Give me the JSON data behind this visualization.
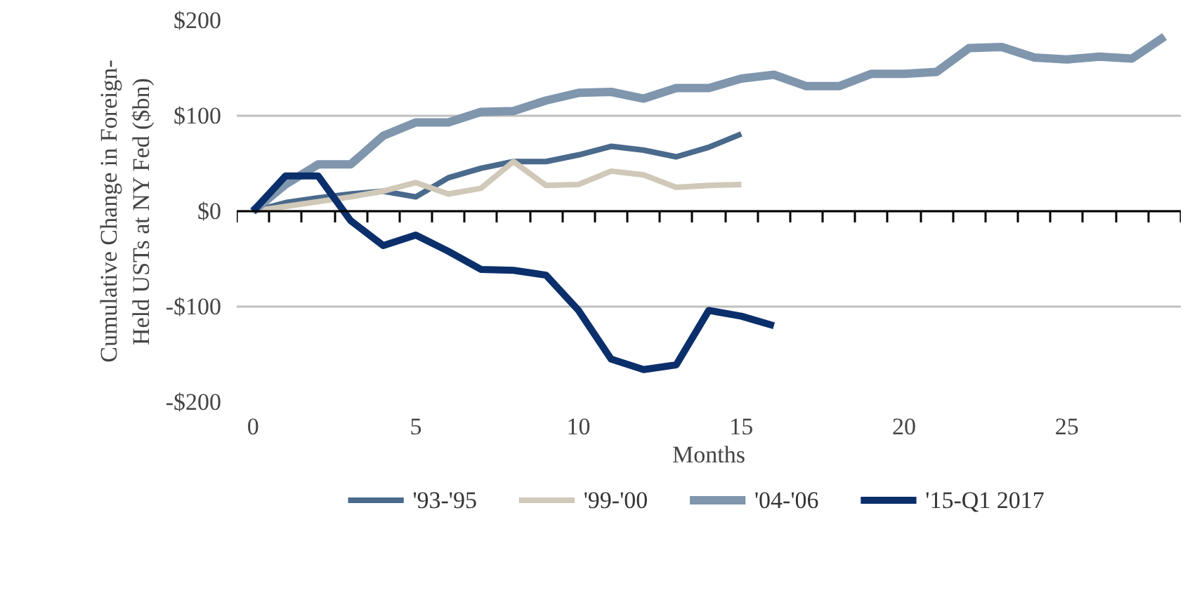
{
  "chart_data": {
    "type": "line",
    "xlabel": "Months",
    "ylabel": "Cumulative Change in Foreign-Held USTs at NY Fed ($bn)",
    "x": [
      0,
      1,
      2,
      3,
      4,
      5,
      6,
      7,
      8,
      9,
      10,
      11,
      12,
      13,
      14,
      15,
      16,
      17,
      18,
      19,
      20,
      21,
      22,
      23,
      24,
      25,
      26,
      27,
      28
    ],
    "series": [
      {
        "name": "'93-'95",
        "color": "#4a6a8c",
        "values": [
          0,
          9,
          14,
          18,
          21,
          15,
          35,
          45,
          52,
          52,
          59,
          68,
          64,
          57,
          67,
          81,
          null,
          null,
          null,
          null,
          null,
          null,
          null,
          null,
          null,
          null,
          null,
          null,
          null
        ]
      },
      {
        "name": "'99-'00",
        "color": "#d0c8b8",
        "values": [
          0,
          5,
          10,
          15,
          21,
          30,
          18,
          24,
          52,
          27,
          28,
          42,
          38,
          25,
          27,
          28,
          null,
          null,
          null,
          null,
          null,
          null,
          null,
          null,
          null,
          null,
          null,
          null,
          null
        ]
      },
      {
        "name": "'04-'06",
        "color": "#7f96ad",
        "values": [
          0,
          28,
          49,
          49,
          79,
          93,
          93,
          104,
          105,
          116,
          124,
          125,
          118,
          129,
          129,
          139,
          143,
          131,
          131,
          144,
          144,
          146,
          171,
          172,
          161,
          159,
          162,
          160,
          183
        ]
      },
      {
        "name": "'15-Q1 2017",
        "color": "#0b2f6b",
        "values": [
          0,
          37,
          37,
          -10,
          -36,
          -25,
          -42,
          -61,
          -62,
          -67,
          -104,
          -155,
          -166,
          -161,
          -104,
          -110,
          -120,
          null,
          null,
          null,
          null,
          null,
          null,
          null,
          null,
          null,
          null,
          null,
          null
        ]
      }
    ],
    "xlim": [
      -0.5,
      28.5
    ],
    "xticks": [
      0,
      5,
      10,
      15,
      20,
      25,
      {
        "value": -0.5,
        "label": null
      },
      {
        "value": 0.5,
        "label": null
      },
      {
        "value": 1.5,
        "label": null
      },
      {
        "value": 2.5,
        "label": null
      },
      {
        "value": 3.5,
        "label": null
      },
      {
        "value": 4.5,
        "label": null
      },
      {
        "value": 5.5,
        "label": null
      },
      {
        "value": 6.5,
        "label": null
      },
      {
        "value": 7.5,
        "label": null
      },
      {
        "value": 8.5,
        "label": null
      },
      {
        "value": 9.5,
        "label": null
      },
      {
        "value": 10.5,
        "label": null
      },
      {
        "value": 11.5,
        "label": null
      },
      {
        "value": 12.5,
        "label": null
      },
      {
        "value": 13.5,
        "label": null
      },
      {
        "value": 14.5,
        "label": null
      },
      {
        "value": 15.5,
        "label": null
      },
      {
        "value": 16.5,
        "label": null
      },
      {
        "value": 17.5,
        "label": null
      },
      {
        "value": 18.5,
        "label": null
      },
      {
        "value": 19.5,
        "label": null
      },
      {
        "value": 20.5,
        "label": null
      },
      {
        "value": 21.5,
        "label": null
      },
      {
        "value": 22.5,
        "label": null
      },
      {
        "value": 23.5,
        "label": null
      },
      {
        "value": 24.5,
        "label": null
      },
      {
        "value": 25.5,
        "label": null
      },
      {
        "value": 26.5,
        "label": null
      },
      {
        "value": 27.5,
        "label": null
      },
      {
        "value": 28.5,
        "label": null
      }
    ],
    "ylim": [
      -200,
      200
    ],
    "yticks": [
      {
        "value": 200,
        "label": "$200"
      },
      {
        "value": 100,
        "label": "$100"
      },
      {
        "value": 0,
        "label": "$0"
      },
      {
        "value": -100,
        "label": "-$100"
      },
      {
        "value": -200,
        "label": "-$200"
      }
    ],
    "grid": "y",
    "legend": "bottom",
    "line_style": "solid",
    "marker": "none"
  }
}
